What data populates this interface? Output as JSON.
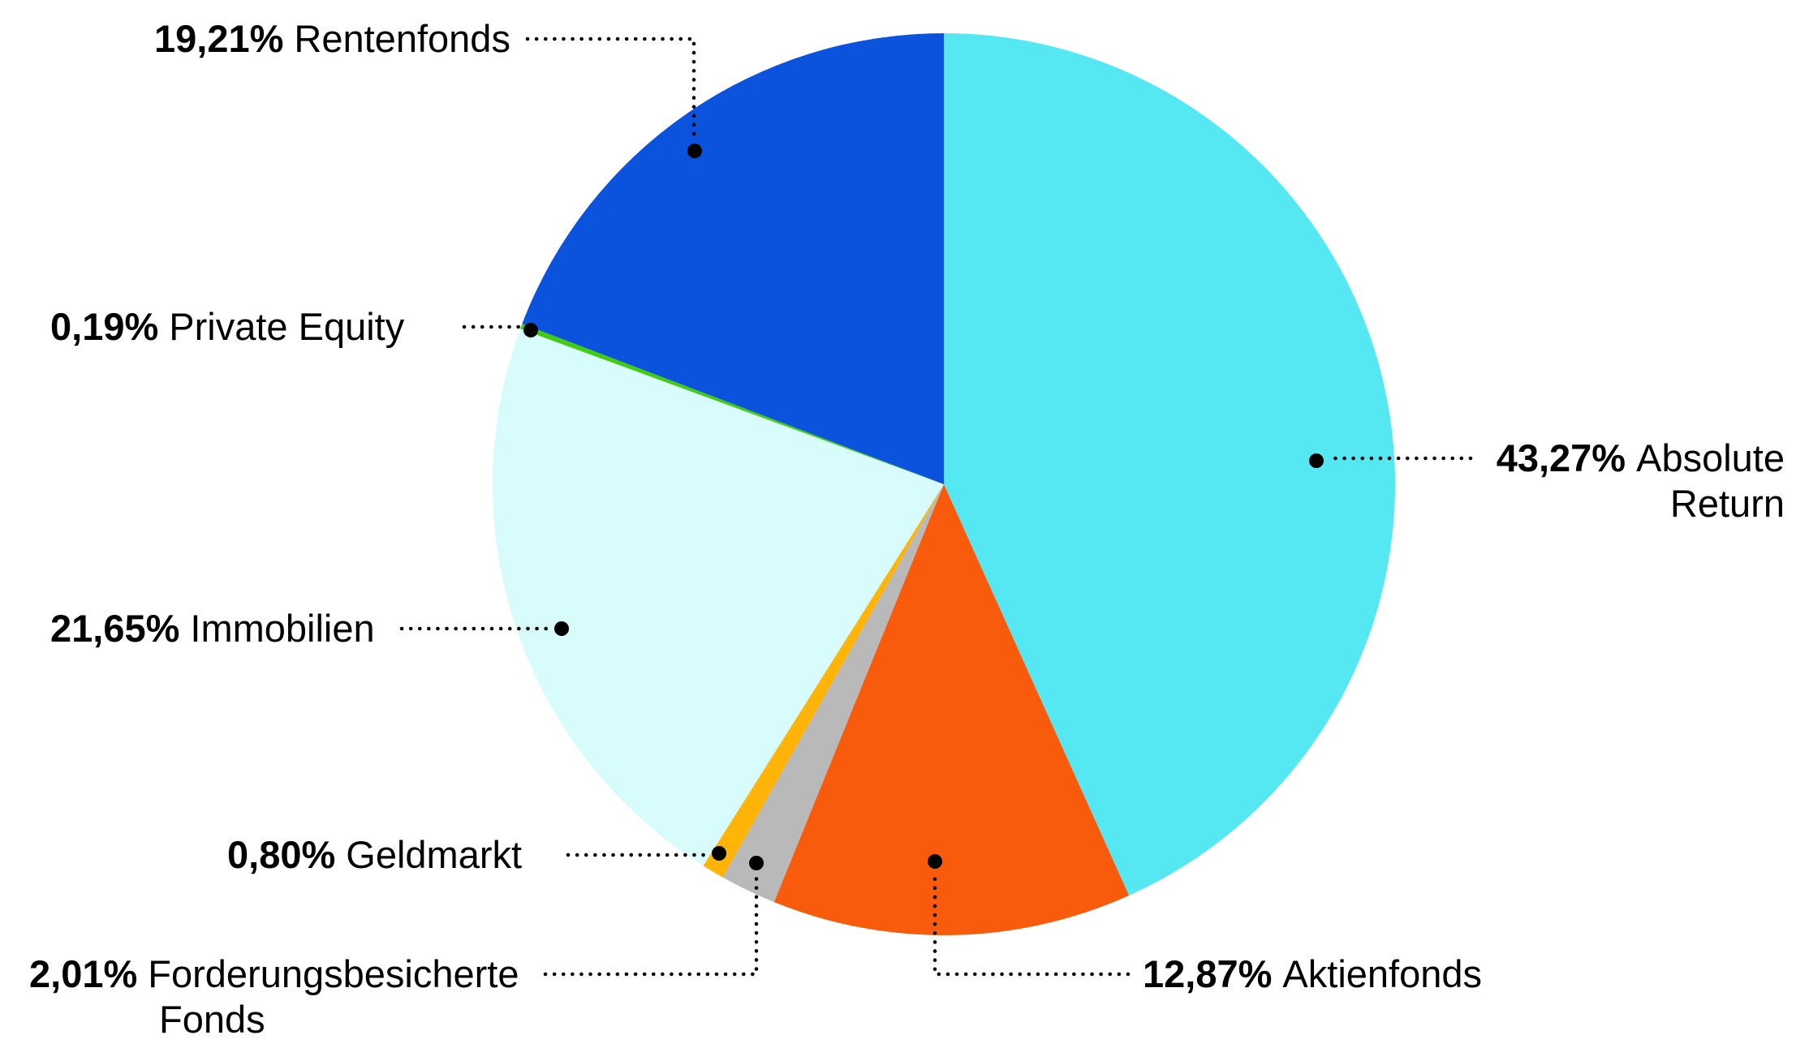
{
  "background_color": "#ffffff",
  "text_color": "#000000",
  "chart_data": {
    "type": "pie",
    "title": "",
    "direction": "clockwise",
    "start_angle_deg_from_top": 0,
    "total": 100,
    "legend": "none",
    "label_style": "bold percent + category name, dotted black leader lines ending in black dots",
    "leader_line_color": "#000000",
    "slices": [
      {
        "name": "Absolute Return",
        "value": 43.27,
        "pct_label": "43,27%",
        "color": "#55E8F2"
      },
      {
        "name": "Aktienfonds",
        "value": 12.87,
        "pct_label": "12,87%",
        "color": "#F85B0C"
      },
      {
        "name": "Forderungsbesicherte Fonds",
        "value": 2.01,
        "pct_label": "2,01%",
        "color": "#B9B9B9"
      },
      {
        "name": "Geldmarkt",
        "value": 0.8,
        "pct_label": "0,80%",
        "color": "#FFB407"
      },
      {
        "name": "Immobilien",
        "value": 21.65,
        "pct_label": "21,65%",
        "color": "#D8FBFB"
      },
      {
        "name": "Private Equity",
        "value": 0.19,
        "pct_label": "0,19%",
        "color": "#42CD12"
      },
      {
        "name": "Rentenfonds",
        "value": 19.21,
        "pct_label": "19,21%",
        "color": "#0B53DC"
      }
    ]
  }
}
